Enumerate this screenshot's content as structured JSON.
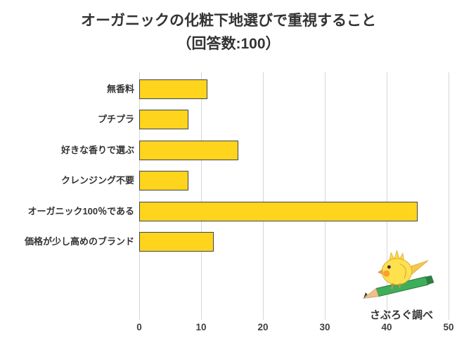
{
  "title": {
    "line1": "オーガニックの化粧下地選びで重視すること",
    "line2": "（回答数:100）"
  },
  "chart_data": {
    "type": "bar",
    "orientation": "horizontal",
    "title": "オーガニックの化粧下地選びで重視すること（回答数:100）",
    "categories": [
      "無香料",
      "プチプラ",
      "好きな香りで選ぶ",
      "クレンジング不要",
      "オーガニック100％である",
      "価格が少し高めのブランド"
    ],
    "values": [
      11,
      8,
      16,
      8,
      45,
      12
    ],
    "xlim": [
      0,
      50
    ],
    "x_ticks": [
      0,
      10,
      20,
      30,
      40,
      50
    ],
    "grid": "vertical",
    "bar_color": "#ffd41c",
    "bar_border_color": "#3c4554",
    "legend": "none"
  },
  "credit": {
    "label": "さぶろぐ調べ"
  }
}
